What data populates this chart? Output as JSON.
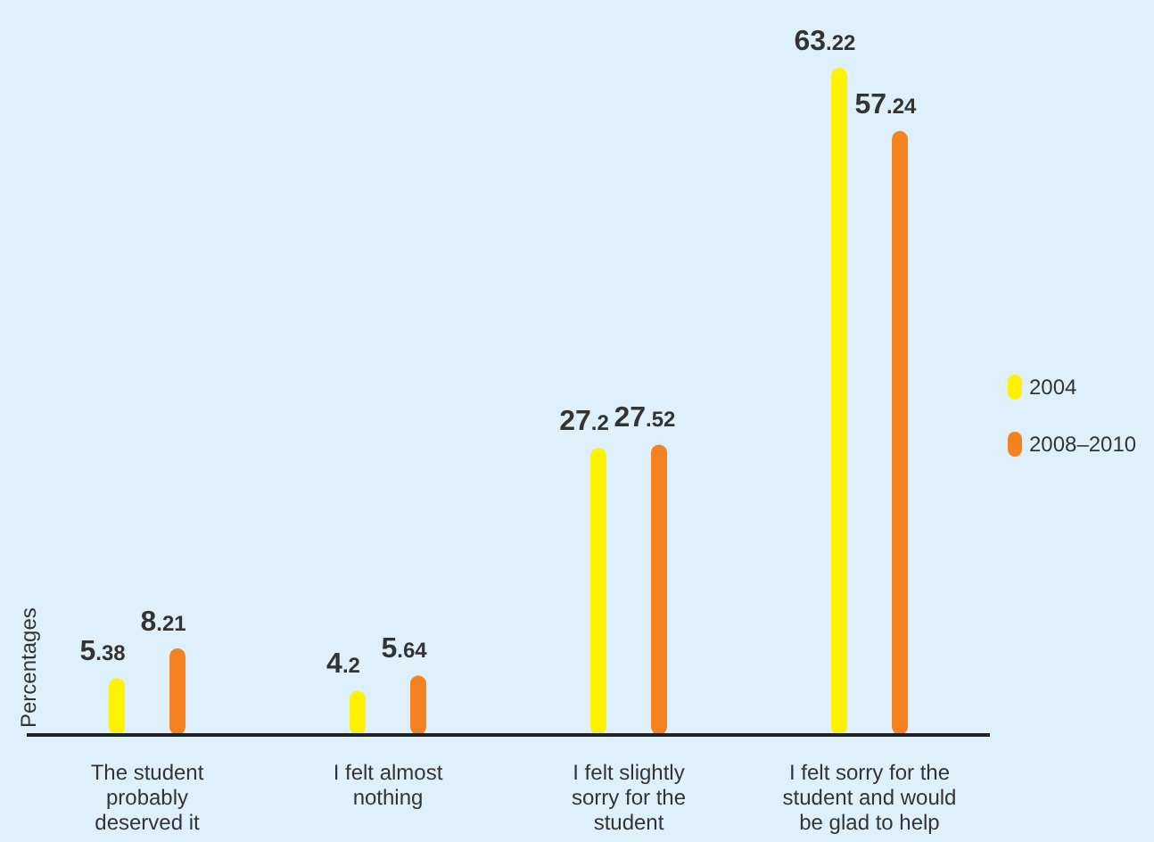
{
  "chart_data": {
    "type": "bar",
    "ylabel": "Percentages",
    "categories": [
      "The student\nprobably\ndeserved it",
      "I felt almost\nnothing",
      "I felt slightly\nsorry for the\nstudent",
      "I felt sorry for the\nstudent and would\nbe glad to help"
    ],
    "series": [
      {
        "name": "2004",
        "color": "#fff200",
        "values": [
          5.38,
          4.2,
          27.2,
          63.22
        ]
      },
      {
        "name": "2008–2010",
        "color": "#f58220",
        "values": [
          8.21,
          5.64,
          27.52,
          57.24
        ]
      }
    ],
    "data_labels": true,
    "legend": "right"
  }
}
